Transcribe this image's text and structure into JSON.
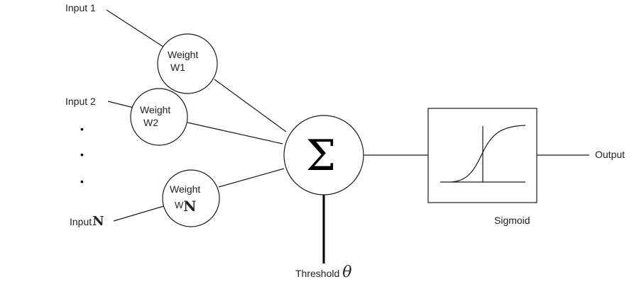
{
  "inputs": {
    "input1": "Input 1",
    "input2": "Input 2",
    "inputN_prefix": "Input",
    "inputN_suffix": "N"
  },
  "weights": {
    "w1_line1": "Weight",
    "w1_line2": "W1",
    "w2_line1": "Weight",
    "w2_line2": "W2",
    "wn_line1": "Weight",
    "wn_line2_prefix": "W",
    "wn_line2_suffix": "N"
  },
  "ellipsis": [
    "•",
    "•",
    "•"
  ],
  "summation": {
    "symbol": "Σ"
  },
  "threshold": {
    "label": "Threshold",
    "symbol": "θ"
  },
  "activation": {
    "label": "Sigmoid"
  },
  "output": {
    "label": "Output"
  },
  "colors": {
    "line": "#1a1a1a",
    "text": "#222222",
    "background": "#ffffff"
  }
}
